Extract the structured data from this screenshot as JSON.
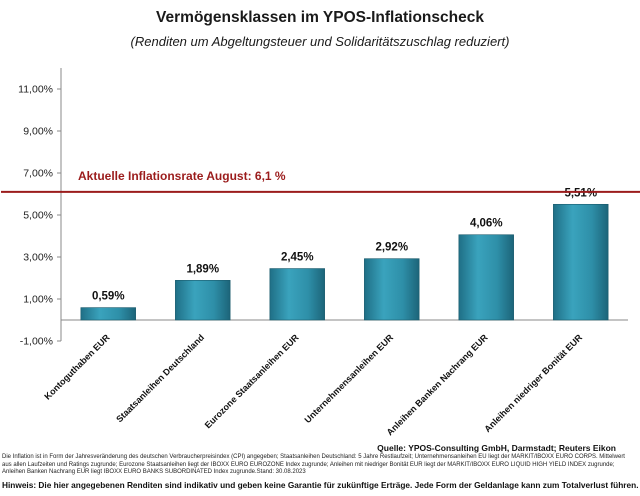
{
  "header": {
    "title": "Vermögensklassen im YPOS-Inflationscheck",
    "subtitle": "(Renditen um Abgeltungsteuer und Solidaritätszuschlag reduziert)"
  },
  "chart_data": {
    "type": "bar",
    "categories": [
      "Kontoguthaben EUR",
      "Staatsanleihen Deutschland",
      "Eurozone Staatsanleihen EUR",
      "Unternehmensanleihen EUR",
      "Anleihen Banken Nachrang EUR",
      "Anleihen niedriger Bonität EUR"
    ],
    "values": [
      0.59,
      1.89,
      2.45,
      2.92,
      4.06,
      5.51
    ],
    "value_labels": [
      "0,59%",
      "1,89%",
      "2,45%",
      "2,92%",
      "4,06%",
      "5,51%"
    ],
    "ylim": [
      -1,
      12
    ],
    "yticks": [
      -1,
      1,
      3,
      5,
      7,
      9,
      11
    ],
    "ytick_labels": [
      "-1,00%",
      "1,00%",
      "3,00%",
      "5,00%",
      "7,00%",
      "9,00%",
      "11,00%"
    ],
    "reference_line": {
      "value": 6.1,
      "label": "Aktuelle Inflationsrate August: 6,1 %",
      "color": "#9b1c1c"
    },
    "bar_color": "#2e8fa8",
    "grid": false,
    "legend": "none"
  },
  "source": "Quelle: YPOS-Consulting GmbH, Darmstadt; Reuters Eikon",
  "footnote": "Die Inflation  ist in Form der Jahresveränderung des deutschen Verbraucherpreisindex (CPI) angegeben; Staatsanleihen Deutschland: 5 Jahre Restlaufzeit; Unternehmensanleihen EU liegt der MARKIT/IBOXX EURO CORPS. Mittelwert aus allen Laufzeiten und Ratings zugrunde; Eurozone Staatsanleihen liegt der IBOXX EURO EUROZONE Index zugrunde; Anleihen mit niedriger Bonität EUR liegt der MARKIT/IBOXX EURO LIQUID HIGH YIELD INDEX zugrunde; Anleihen Banken Nachrang EUR liegt IBOXX EURO BANKS SUBORDINATED Index zugrunde.Stand: 30.08.2023",
  "disclaimer": "Hinweis: Die hier angegebenen Renditen sind indikativ und geben keine Garantie für zukünftige Erträge. Jede Form der Geldanlage kann zum Totalverlust führen."
}
